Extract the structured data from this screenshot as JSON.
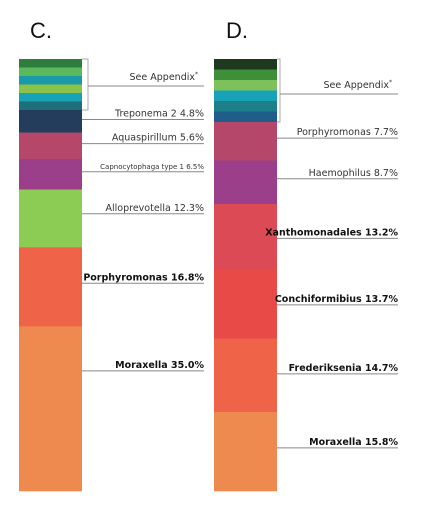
{
  "chart_data": [
    {
      "type": "bar",
      "panel_label": "C.",
      "stacked": true,
      "appendix_label": "See Appendix",
      "appendix_mark": "*",
      "appendix_colors": [
        "#2e7d3e",
        "#5cb85c",
        "#1a9aa8",
        "#8bc34a",
        "#17a2b8",
        "#1f6f7a"
      ],
      "series": [
        {
          "name": "Treponema 2",
          "value_label": "4.8%",
          "value": 4.8,
          "color": "#243d5c",
          "bold": false,
          "small": false
        },
        {
          "name": "Aquaspirillum",
          "value_label": "5.6%",
          "value": 5.6,
          "color": "#b5486a",
          "bold": false,
          "small": false
        },
        {
          "name": "Capnocytophaga type 1",
          "value_label": "6.5%",
          "value": 6.5,
          "color": "#9b3f8a",
          "bold": false,
          "small": true
        },
        {
          "name": "Alloprevotella",
          "value_label": "12.3%",
          "value": 12.3,
          "color": "#8ccc55",
          "bold": false,
          "small": false
        },
        {
          "name": "Porphyromonas",
          "value_label": "16.8%",
          "value": 16.8,
          "color": "#ef6348",
          "bold": true,
          "small": false
        },
        {
          "name": "Moraxella",
          "value_label": "35.0%",
          "value": 35.0,
          "color": "#ee8a50",
          "bold": true,
          "small": false
        }
      ]
    },
    {
      "type": "bar",
      "panel_label": "D.",
      "stacked": true,
      "appendix_label": "See Appendix",
      "appendix_mark": "*",
      "appendix_colors": [
        "#1e3a1e",
        "#3f8f3a",
        "#7cc15a",
        "#17a2b8",
        "#1c7f8a",
        "#1f5d8a"
      ],
      "series": [
        {
          "name": "Porphyromonas",
          "value_label": "7.7%",
          "value": 7.7,
          "color": "#b5486a",
          "bold": false,
          "small": false
        },
        {
          "name": "Haemophilus",
          "value_label": "8.7%",
          "value": 8.7,
          "color": "#9b3f8a",
          "bold": false,
          "small": false
        },
        {
          "name": "Xanthomonadales",
          "value_label": "13.2%",
          "value": 13.2,
          "color": "#dc4a55",
          "bold": true,
          "small": false
        },
        {
          "name": "Conchiformibius",
          "value_label": "13.7%",
          "value": 13.7,
          "color": "#e84a48",
          "bold": true,
          "small": false
        },
        {
          "name": "Frederiksenia",
          "value_label": "14.7%",
          "value": 14.7,
          "color": "#ef6348",
          "bold": true,
          "small": false
        },
        {
          "name": "Moraxella",
          "value_label": "15.8%",
          "value": 15.8,
          "color": "#ee8a50",
          "bold": true,
          "small": false
        }
      ]
    }
  ]
}
